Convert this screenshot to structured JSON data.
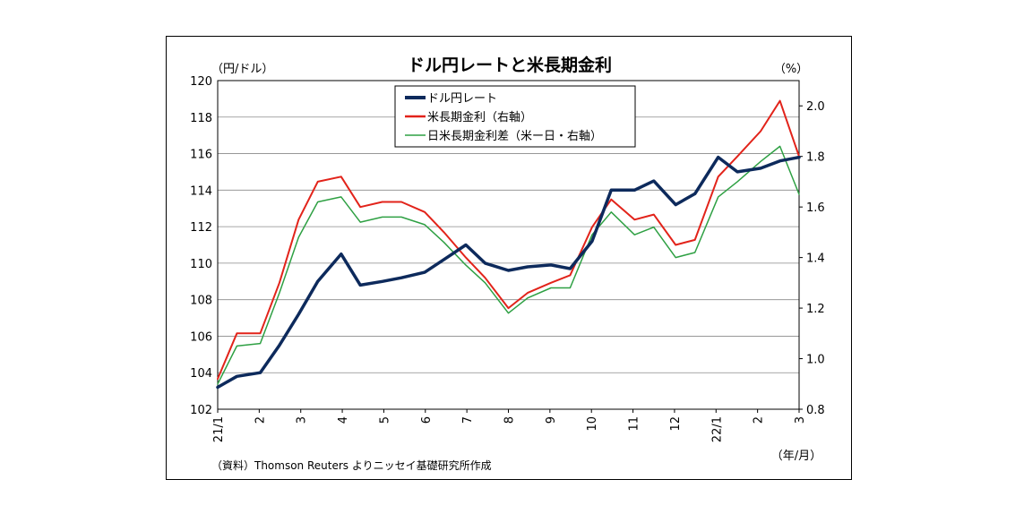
{
  "chart_data": {
    "type": "line",
    "title": "ドル円レートと米長期金利",
    "left_unit": "（円/ドル）",
    "right_unit": "（%）",
    "x_unit": "（年/月）",
    "source": "（資料）Thomson Reuters よりニッセイ基礎研究所作成",
    "x_tick_labels": [
      "21/1",
      "2",
      "3",
      "4",
      "5",
      "6",
      "7",
      "8",
      "9",
      "10",
      "11",
      "12",
      "22/1",
      "2",
      "3"
    ],
    "y_left": {
      "min": 102,
      "max": 120,
      "step": 2,
      "labels": [
        "102",
        "104",
        "106",
        "108",
        "110",
        "112",
        "114",
        "116",
        "118",
        "120"
      ]
    },
    "y_right": {
      "min": 0.8,
      "max": 2.1,
      "labels": [
        "0.8",
        "1.0",
        "1.2",
        "1.4",
        "1.6",
        "1.8",
        "2.0"
      ]
    },
    "x": [
      "2021-01-01",
      "2021-01-15",
      "2021-02-01",
      "2021-02-15",
      "2021-03-01",
      "2021-03-15",
      "2021-04-01",
      "2021-04-15",
      "2021-05-01",
      "2021-05-15",
      "2021-06-01",
      "2021-06-15",
      "2021-07-01",
      "2021-07-15",
      "2021-08-01",
      "2021-08-15",
      "2021-09-01",
      "2021-09-15",
      "2021-10-01",
      "2021-10-15",
      "2021-11-01",
      "2021-11-15",
      "2021-12-01",
      "2021-12-15",
      "2022-01-01",
      "2022-01-15",
      "2022-02-01",
      "2022-02-15",
      "2022-03-01"
    ],
    "series": [
      {
        "name": "ドル円レート",
        "axis": "left",
        "color": "#0d2a5c",
        "values": [
          103.2,
          103.8,
          104.0,
          105.5,
          107.2,
          109.0,
          110.5,
          108.8,
          109.0,
          109.2,
          109.5,
          110.2,
          111.0,
          110.0,
          109.6,
          109.8,
          109.9,
          109.7,
          111.2,
          114.0,
          114.0,
          114.5,
          113.2,
          113.8,
          115.8,
          115.0,
          115.2,
          115.6,
          115.8
        ]
      },
      {
        "name": "米長期金利（右軸）",
        "axis": "right",
        "color": "#e2231a",
        "values": [
          0.92,
          1.1,
          1.1,
          1.3,
          1.55,
          1.7,
          1.72,
          1.6,
          1.62,
          1.62,
          1.58,
          1.5,
          1.4,
          1.32,
          1.2,
          1.26,
          1.3,
          1.33,
          1.52,
          1.63,
          1.55,
          1.57,
          1.45,
          1.47,
          1.72,
          1.8,
          1.9,
          2.02,
          1.8
        ]
      },
      {
        "name": "日米長期金利差（米ー日・右軸）",
        "axis": "right",
        "color": "#2ea043",
        "values": [
          0.9,
          1.05,
          1.06,
          1.26,
          1.48,
          1.62,
          1.64,
          1.54,
          1.56,
          1.56,
          1.53,
          1.46,
          1.37,
          1.3,
          1.18,
          1.24,
          1.28,
          1.28,
          1.49,
          1.58,
          1.49,
          1.52,
          1.4,
          1.42,
          1.64,
          1.7,
          1.78,
          1.84,
          1.65
        ]
      }
    ],
    "grid": "horizontal",
    "legend_position": "top-center"
  }
}
